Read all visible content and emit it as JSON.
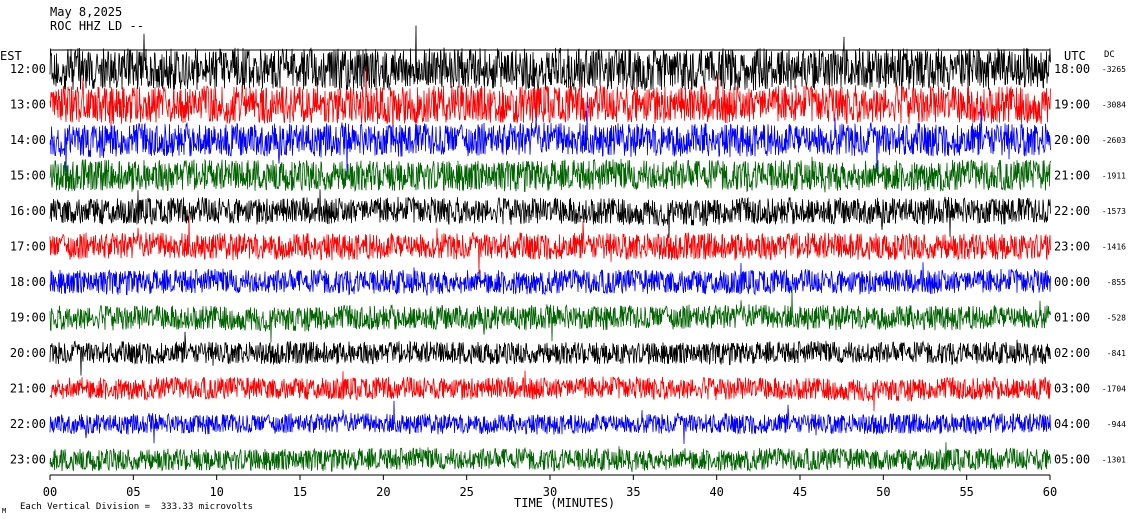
{
  "header": {
    "date": "May 8,2025",
    "station": "ROC HHZ LD --",
    "left_tz": "EST",
    "right_tz": "UTC",
    "dc_label": "DC"
  },
  "footer": {
    "xlabel": "TIME (MINUTES)",
    "scale_note": "Each Vertical Division =  333.33 microvolts",
    "corner_mark": "M"
  },
  "colors": {
    "trace_cycle": [
      "#000000",
      "#ff0000",
      "#0000ff",
      "#006400"
    ],
    "background": "#ffffff",
    "text": "#000000"
  },
  "chart_data": {
    "type": "line",
    "subtype": "helicorder",
    "title": "",
    "xlabel": "TIME (MINUTES)",
    "ylabel": "",
    "xlim": [
      0,
      60
    ],
    "x_ticks": [
      "00",
      "05",
      "10",
      "15",
      "20",
      "25",
      "30",
      "35",
      "40",
      "45",
      "50",
      "55",
      "60"
    ],
    "rows": [
      {
        "est": "12:00",
        "utc": "18:00",
        "dc": "-3265",
        "color": "#000000",
        "amplitude": 0.95
      },
      {
        "est": "13:00",
        "utc": "19:00",
        "dc": "-3084",
        "color": "#ff0000",
        "amplitude": 0.85
      },
      {
        "est": "14:00",
        "utc": "20:00",
        "dc": "-2603",
        "color": "#0000ff",
        "amplitude": 0.75
      },
      {
        "est": "15:00",
        "utc": "21:00",
        "dc": "-1911",
        "color": "#006400",
        "amplitude": 0.7
      },
      {
        "est": "16:00",
        "utc": "22:00",
        "dc": "-1573",
        "color": "#000000",
        "amplitude": 0.6
      },
      {
        "est": "17:00",
        "utc": "23:00",
        "dc": "-1416",
        "color": "#ff0000",
        "amplitude": 0.6
      },
      {
        "est": "18:00",
        "utc": "00:00",
        "dc": "-855",
        "color": "#0000ff",
        "amplitude": 0.55
      },
      {
        "est": "19:00",
        "utc": "01:00",
        "dc": "-528",
        "color": "#006400",
        "amplitude": 0.55
      },
      {
        "est": "20:00",
        "utc": "02:00",
        "dc": "-841",
        "color": "#000000",
        "amplitude": 0.5
      },
      {
        "est": "21:00",
        "utc": "03:00",
        "dc": "-1704",
        "color": "#ff0000",
        "amplitude": 0.5
      },
      {
        "est": "22:00",
        "utc": "04:00",
        "dc": "-944",
        "color": "#0000ff",
        "amplitude": 0.45
      },
      {
        "est": "23:00",
        "utc": "05:00",
        "dc": "-1301",
        "color": "#006400",
        "amplitude": 0.5
      }
    ]
  }
}
